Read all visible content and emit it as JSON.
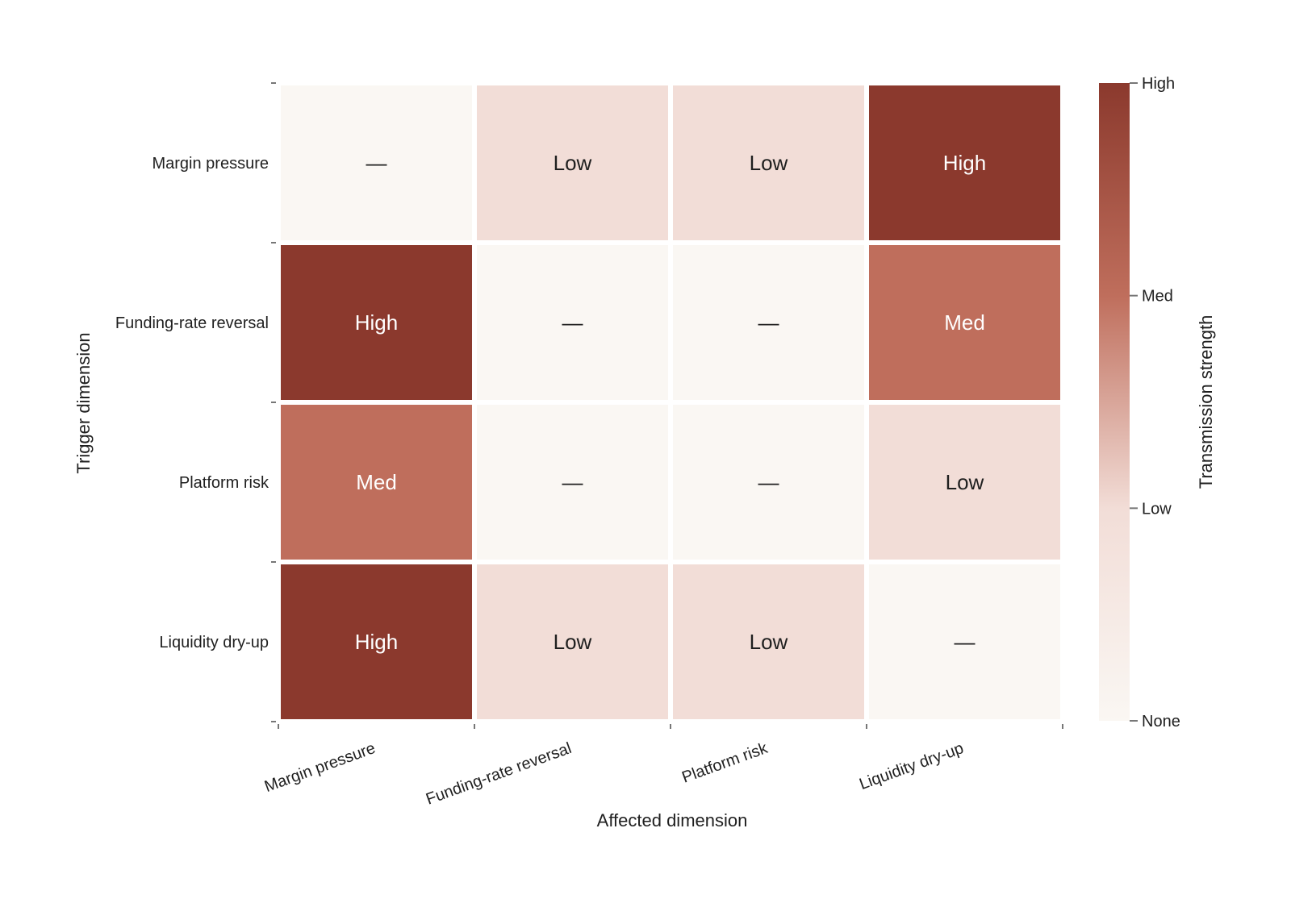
{
  "chart_data": {
    "type": "heatmap",
    "x_categories": [
      "Margin pressure",
      "Funding-rate reversal",
      "Platform risk",
      "Liquidity dry-up"
    ],
    "y_categories": [
      "Margin pressure",
      "Funding-rate reversal",
      "Platform risk",
      "Liquidity dry-up"
    ],
    "values": [
      [
        0,
        1,
        1,
        3
      ],
      [
        3,
        0,
        0,
        2
      ],
      [
        2,
        0,
        0,
        1
      ],
      [
        3,
        1,
        1,
        0
      ]
    ],
    "cell_labels": [
      [
        "—",
        "Low",
        "Low",
        "High"
      ],
      [
        "High",
        "—",
        "—",
        "Med"
      ],
      [
        "Med",
        "—",
        "—",
        "Low"
      ],
      [
        "High",
        "Low",
        "Low",
        "—"
      ]
    ],
    "xlabel": "Affected dimension",
    "ylabel": "Trigger dimension",
    "colorbar": {
      "label": "Transmission strength",
      "range": [
        0,
        3
      ],
      "ticks": [
        0,
        1,
        2,
        3
      ],
      "tick_labels": [
        "None",
        "Low",
        "Med",
        "High"
      ],
      "colors": [
        "#faf7f3",
        "#f2ddd7",
        "#bf6e5c",
        "#8b392d"
      ]
    },
    "grid": false
  }
}
